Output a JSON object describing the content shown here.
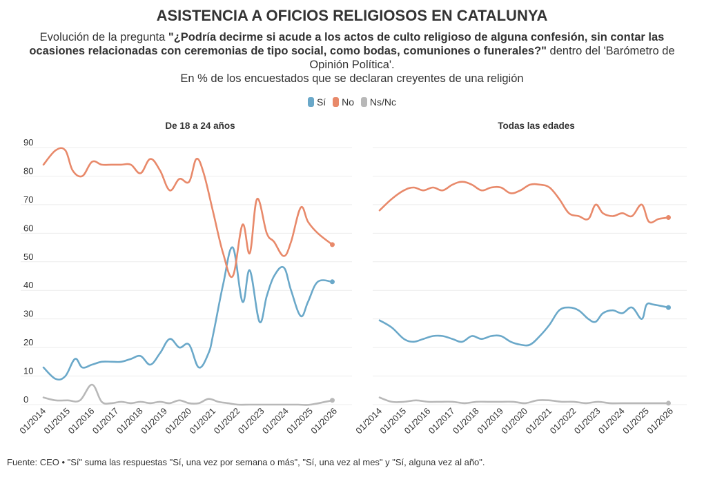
{
  "title": "ASISTENCIA A OFICIOS RELIGIOSOS EN CATALUNYA",
  "subtitle": {
    "prefix": "Evolución de la pregunta ",
    "question": "\"¿Podría decirme si acude a los actos de culto religioso de alguna confesión, sin contar las ocasiones relacionadas con ceremonias de tipo social, como bodas, comuniones o funerales?\"",
    "suffix": " dentro del 'Barómetro de Opinión Política'.",
    "line3": "En % de los encuestados que se declaran creyentes de una religión"
  },
  "legend": [
    {
      "label": "Sí",
      "color": "#6aa8c9"
    },
    {
      "label": "No",
      "color": "#e8896a"
    },
    {
      "label": "Ns/Nc",
      "color": "#b8b8b8"
    }
  ],
  "footer": "Fuente: CEO • \"Sí\" suma las respuestas \"Sí, una vez por semana o más\", \"Sí, una vez al mes\" y \"Sí, alguna vez al año\".",
  "chart_data": [
    {
      "type": "line",
      "title": "De 18 a 24 años",
      "ylim": [
        0,
        90
      ],
      "yticks": [
        0,
        10,
        20,
        30,
        40,
        50,
        60,
        70,
        80,
        90
      ],
      "xlim": [
        2014,
        2026
      ],
      "xticks": [
        "01/2014",
        "01/2015",
        "01/2016",
        "01/2017",
        "01/2018",
        "01/2019",
        "01/2020",
        "01/2021",
        "01/2022",
        "01/2023",
        "01/2024",
        "01/2025",
        "01/2026"
      ],
      "grid": true,
      "series": [
        {
          "name": "Sí",
          "color": "#6aa8c9",
          "x": [
            2014.0,
            2014.5,
            2014.9,
            2015.3,
            2015.6,
            2016.0,
            2016.4,
            2016.8,
            2017.2,
            2017.6,
            2018.0,
            2018.4,
            2018.8,
            2019.2,
            2019.6,
            2020.0,
            2020.4,
            2020.8,
            2021.0,
            2021.4,
            2021.8,
            2022.2,
            2022.5,
            2022.9,
            2023.2,
            2023.5,
            2023.9,
            2024.2,
            2024.6,
            2024.9,
            2025.3,
            2025.9
          ],
          "values": [
            13,
            9,
            10,
            16,
            13,
            14,
            15,
            15,
            15,
            16,
            17,
            14,
            18,
            23,
            20,
            21,
            13,
            18,
            25,
            42,
            55,
            36,
            47,
            29,
            38,
            45,
            48,
            40,
            31,
            36,
            43,
            43
          ]
        },
        {
          "name": "No",
          "color": "#e8896a",
          "x": [
            2014.0,
            2014.5,
            2014.9,
            2015.2,
            2015.6,
            2016.0,
            2016.4,
            2016.8,
            2017.2,
            2017.6,
            2018.0,
            2018.4,
            2018.8,
            2019.2,
            2019.6,
            2020.0,
            2020.3,
            2020.6,
            2021.0,
            2021.4,
            2021.8,
            2022.2,
            2022.5,
            2022.8,
            2023.2,
            2023.5,
            2023.9,
            2024.2,
            2024.6,
            2024.9,
            2025.3,
            2025.9
          ],
          "values": [
            84,
            89,
            89,
            82,
            80,
            85,
            84,
            84,
            84,
            84,
            81,
            86,
            82,
            75,
            79,
            78,
            86,
            81,
            67,
            53,
            45,
            63,
            53,
            72,
            60,
            57,
            52,
            57,
            69,
            64,
            60,
            56
          ]
        },
        {
          "name": "Ns/Nc",
          "color": "#b8b8b8",
          "x": [
            2014.0,
            2014.5,
            2015.0,
            2015.5,
            2016.0,
            2016.4,
            2016.8,
            2017.2,
            2017.6,
            2018.0,
            2018.4,
            2018.8,
            2019.2,
            2019.6,
            2020.0,
            2020.4,
            2020.8,
            2021.2,
            2021.6,
            2022.0,
            2022.5,
            2023.0,
            2023.5,
            2024.0,
            2024.5,
            2025.0,
            2025.9
          ],
          "values": [
            2.5,
            1.5,
            1.5,
            1.5,
            7,
            1,
            0.5,
            1,
            0.5,
            1,
            0.5,
            1,
            0.5,
            1.5,
            0.5,
            0.5,
            2,
            1,
            0.5,
            0,
            0,
            0,
            0,
            0,
            0,
            0,
            1.5
          ]
        }
      ]
    },
    {
      "type": "line",
      "title": "Todas las edades",
      "ylim": [
        0,
        90
      ],
      "yticks": [
        0,
        10,
        20,
        30,
        40,
        50,
        60,
        70,
        80,
        90
      ],
      "xlim": [
        2014,
        2026
      ],
      "xticks": [
        "01/2014",
        "01/2015",
        "01/2016",
        "01/2017",
        "01/2018",
        "01/2019",
        "01/2020",
        "01/2021",
        "01/2022",
        "01/2023",
        "01/2024",
        "01/2025",
        "01/2026"
      ],
      "grid": true,
      "series": [
        {
          "name": "Sí",
          "color": "#6aa8c9",
          "x": [
            2014.0,
            2014.5,
            2015.0,
            2015.4,
            2015.8,
            2016.2,
            2016.6,
            2017.0,
            2017.4,
            2017.8,
            2018.2,
            2018.6,
            2019.0,
            2019.4,
            2019.8,
            2020.2,
            2020.6,
            2021.0,
            2021.4,
            2021.8,
            2022.2,
            2022.6,
            2022.9,
            2023.2,
            2023.6,
            2024.0,
            2024.4,
            2024.8,
            2025.0,
            2025.3,
            2025.9
          ],
          "values": [
            29.5,
            27,
            23,
            22,
            23,
            24,
            24,
            23,
            22,
            24,
            23,
            24,
            24,
            22,
            21,
            21,
            24,
            28,
            33,
            34,
            33,
            30,
            29,
            32,
            33,
            32,
            34,
            30,
            35,
            35,
            34
          ]
        },
        {
          "name": "No",
          "color": "#e8896a",
          "x": [
            2014.0,
            2014.5,
            2015.0,
            2015.4,
            2015.8,
            2016.2,
            2016.6,
            2017.0,
            2017.4,
            2017.8,
            2018.2,
            2018.6,
            2019.0,
            2019.4,
            2019.8,
            2020.2,
            2020.6,
            2021.0,
            2021.4,
            2021.8,
            2022.2,
            2022.6,
            2022.9,
            2023.2,
            2023.6,
            2024.0,
            2024.4,
            2024.8,
            2025.1,
            2025.5,
            2025.9
          ],
          "values": [
            68,
            72,
            75,
            76,
            75,
            76,
            75,
            77,
            78,
            77,
            75,
            76,
            76,
            74,
            75,
            77,
            77,
            76,
            72,
            67,
            66,
            65,
            70,
            67,
            66,
            67,
            66,
            70,
            64,
            65,
            65.5
          ]
        },
        {
          "name": "Ns/Nc",
          "color": "#b8b8b8",
          "x": [
            2014.0,
            2014.5,
            2015.0,
            2015.5,
            2016.0,
            2016.5,
            2017.0,
            2017.5,
            2018.0,
            2018.5,
            2019.0,
            2019.5,
            2020.0,
            2020.5,
            2021.0,
            2021.5,
            2022.0,
            2022.5,
            2023.0,
            2023.5,
            2024.0,
            2024.5,
            2025.0,
            2025.9
          ],
          "values": [
            2.5,
            1,
            1,
            1.5,
            1,
            1,
            1,
            0.5,
            1,
            1,
            1,
            1,
            0.5,
            1.5,
            1.5,
            1,
            1,
            0.5,
            1,
            0.5,
            0.5,
            0.5,
            0.5,
            0.5
          ]
        }
      ]
    }
  ]
}
